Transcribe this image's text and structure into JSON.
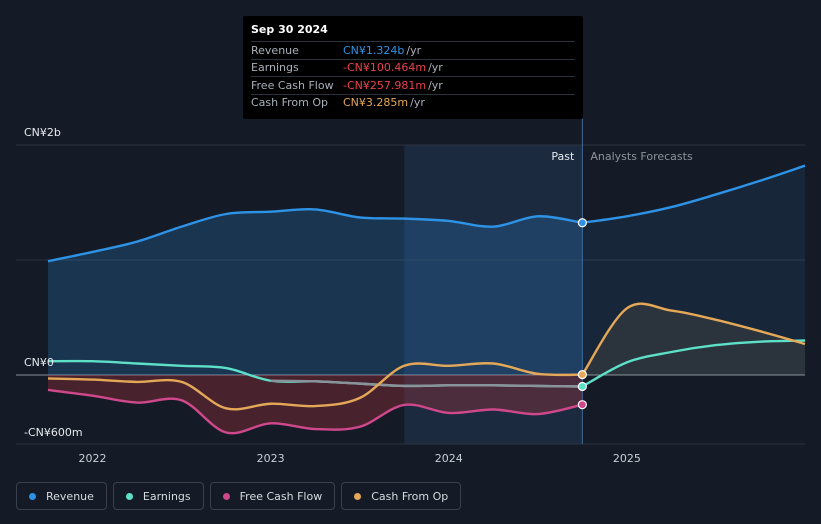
{
  "tooltip": {
    "date": "Sep 30 2024",
    "rows": [
      {
        "label": "Revenue",
        "value": "CN¥1.324b",
        "unit": "/yr",
        "color": "#2e93e6"
      },
      {
        "label": "Earnings",
        "value": "-CN¥100.464m",
        "unit": "/yr",
        "color": "#e8434c"
      },
      {
        "label": "Free Cash Flow",
        "value": "-CN¥257.981m",
        "unit": "/yr",
        "color": "#e8434c"
      },
      {
        "label": "Cash From Op",
        "value": "CN¥3.285m",
        "unit": "/yr",
        "color": "#e5a858"
      }
    ]
  },
  "legend": [
    {
      "label": "Revenue",
      "color": "#2e93e6"
    },
    {
      "label": "Earnings",
      "color": "#5ee0c8"
    },
    {
      "label": "Free Cash Flow",
      "color": "#d0488c"
    },
    {
      "label": "Cash From Op",
      "color": "#e5a858"
    }
  ],
  "chart_data": {
    "type": "line",
    "y_unit": "CN¥ millions",
    "ylim": [
      -600,
      2000
    ],
    "y_tick_labels": [
      {
        "value": 2000,
        "label": "CN¥2b"
      },
      {
        "value": 0,
        "label": "CN¥0"
      },
      {
        "value": -600,
        "label": "-CN¥600m"
      }
    ],
    "x_ticks": [
      2022,
      2023,
      2024,
      2025
    ],
    "xlim": [
      2021.75,
      2026.0
    ],
    "past_label": "Past",
    "forecast_label": "Analysts Forecasts",
    "past_end": 2024.75,
    "highlight_start": 2023.75,
    "grid": true,
    "legend_position": "bottom-left",
    "series": [
      {
        "name": "Revenue",
        "color": "#2e93e6",
        "x": [
          2021.75,
          2022.0,
          2022.25,
          2022.5,
          2022.75,
          2023.0,
          2023.25,
          2023.5,
          2023.75,
          2024.0,
          2024.25,
          2024.5,
          2024.75,
          2025.0,
          2025.25,
          2025.5,
          2025.75,
          2026.0
        ],
        "y": [
          990,
          1070,
          1160,
          1290,
          1400,
          1420,
          1440,
          1370,
          1360,
          1340,
          1290,
          1380,
          1324,
          1380,
          1460,
          1570,
          1690,
          1820
        ]
      },
      {
        "name": "Earnings",
        "color": "#5ee0c8",
        "x": [
          2021.75,
          2022.0,
          2022.25,
          2022.5,
          2022.75,
          2023.0,
          2023.25,
          2023.5,
          2023.75,
          2024.0,
          2024.25,
          2024.5,
          2024.75,
          2025.0,
          2025.25,
          2025.5,
          2025.75,
          2026.0
        ],
        "y": [
          120,
          120,
          100,
          80,
          60,
          -50,
          -55,
          -75,
          -95,
          -90,
          -90,
          -95,
          -100,
          110,
          200,
          260,
          290,
          300
        ]
      },
      {
        "name": "Free Cash Flow",
        "color": "#d0488c",
        "x": [
          2021.75,
          2022.0,
          2022.25,
          2022.5,
          2022.75,
          2023.0,
          2023.25,
          2023.5,
          2023.75,
          2024.0,
          2024.25,
          2024.5,
          2024.75
        ],
        "y": [
          -130,
          -180,
          -240,
          -220,
          -500,
          -420,
          -470,
          -450,
          -260,
          -330,
          -300,
          -340,
          -258
        ]
      },
      {
        "name": "Cash From Op",
        "color": "#e5a858",
        "x": [
          2021.75,
          2022.0,
          2022.25,
          2022.5,
          2022.75,
          2023.0,
          2023.25,
          2023.5,
          2023.75,
          2024.0,
          2024.25,
          2024.5,
          2024.75,
          2025.0,
          2025.25,
          2025.5,
          2025.75,
          2026.0
        ],
        "y": [
          -30,
          -40,
          -60,
          -60,
          -290,
          -250,
          -270,
          -200,
          80,
          80,
          100,
          10,
          3,
          580,
          560,
          480,
          380,
          270
        ]
      }
    ]
  }
}
